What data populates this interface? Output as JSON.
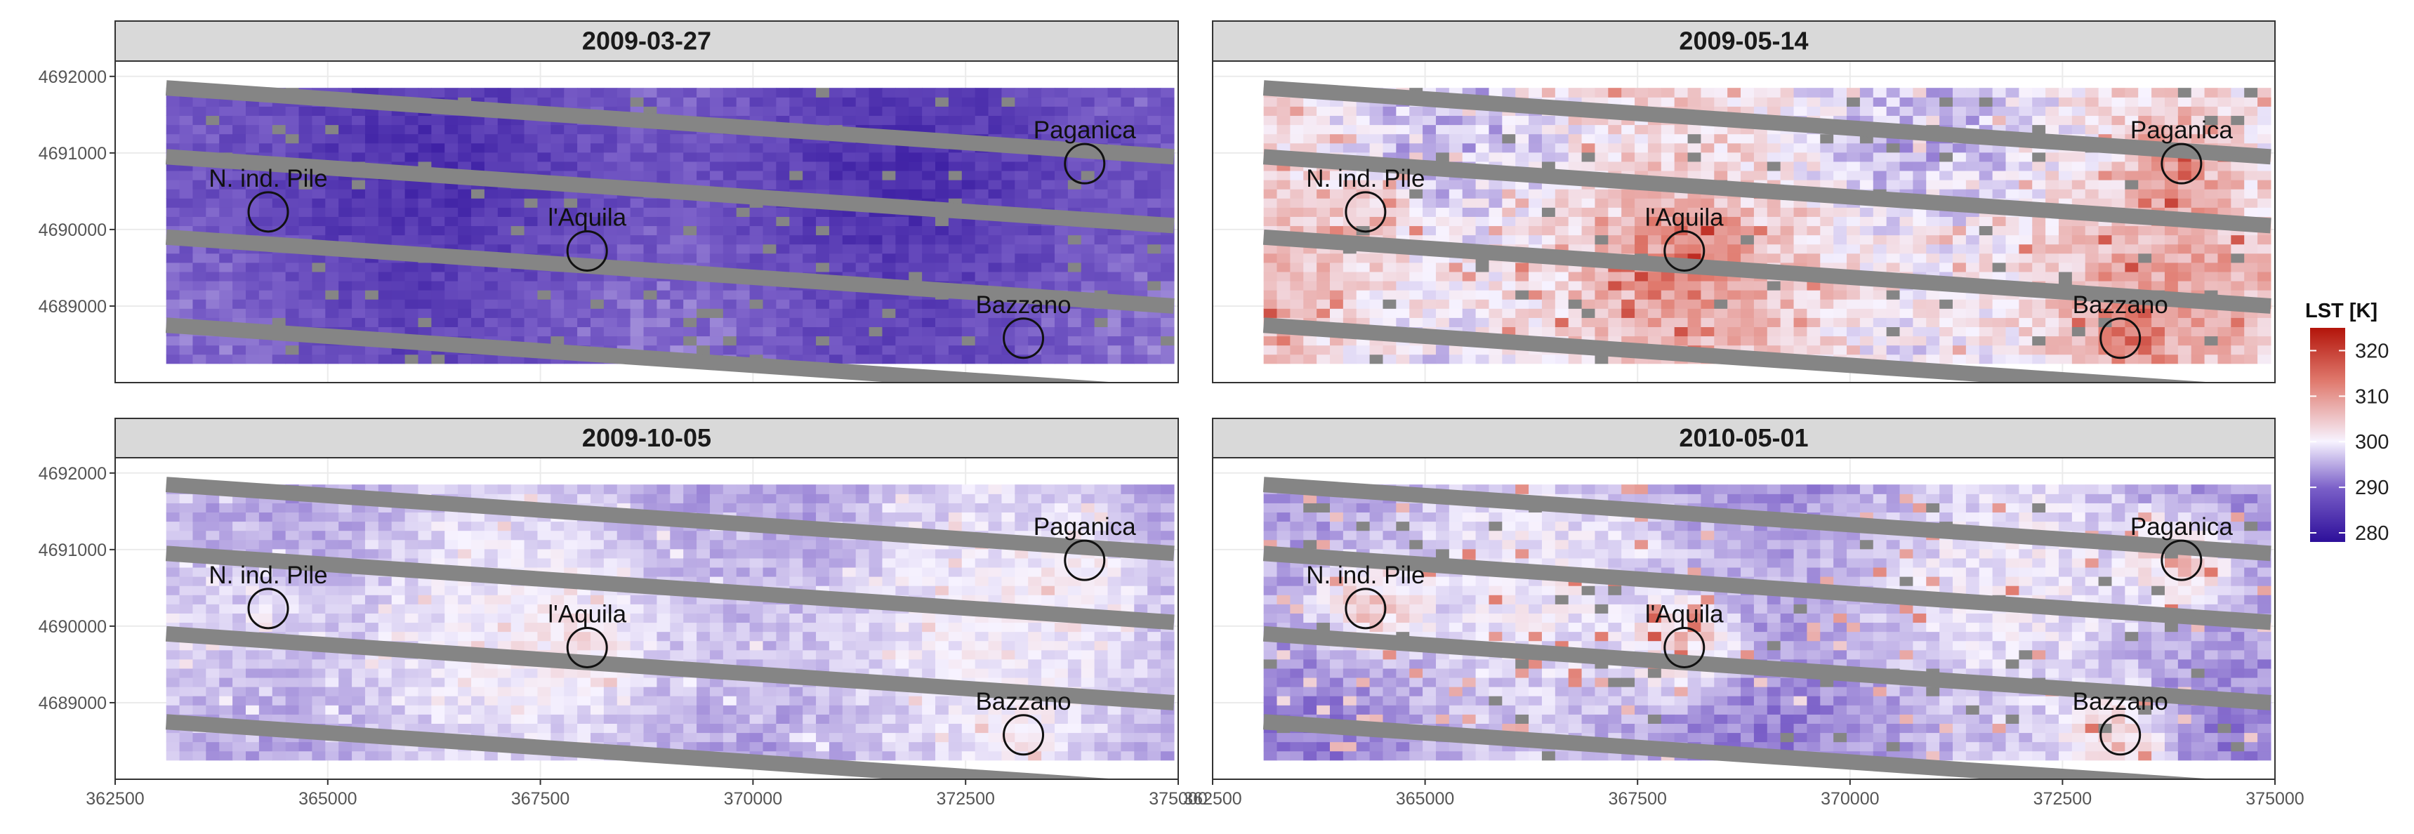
{
  "chart_data": {
    "type": "heatmap",
    "x_ticks": [
      362500,
      365000,
      367500,
      370000,
      372500,
      375000
    ],
    "y_ticks": [
      4689000,
      4690000,
      4691000,
      4692000
    ],
    "xlim": [
      362500,
      375000
    ],
    "ylim": [
      4688000,
      4692200
    ],
    "grid": true,
    "legend": {
      "title": "LST [K]",
      "placement": "right",
      "ticks": [
        280,
        290,
        300,
        310,
        320
      ],
      "range": [
        278,
        325
      ],
      "colors": {
        "low": "#2d0f9a",
        "mid": "#f7f3ff",
        "high": "#b3140a"
      }
    },
    "nodata_color": "#858585",
    "sites": [
      {
        "name": "N. ind. Pile",
        "x": 364300,
        "y": 4690230
      },
      {
        "name": "l'Aquila",
        "x": 368050,
        "y": 4689720
      },
      {
        "name": "Paganica",
        "x": 373900,
        "y": 4690860
      },
      {
        "name": "Bazzano",
        "x": 373180,
        "y": 4688580
      }
    ],
    "panels": [
      {
        "title": "2009-03-27",
        "base_lst": 287,
        "spread": 5,
        "hot": 0
      },
      {
        "title": "2009-05-14",
        "base_lst": 302,
        "spread": 8,
        "hot": 6
      },
      {
        "title": "2009-10-05",
        "base_lst": 297,
        "spread": 4,
        "hot": 3
      },
      {
        "title": "2010-05-01",
        "base_lst": 296,
        "spread": 5,
        "hot": 10
      }
    ]
  }
}
